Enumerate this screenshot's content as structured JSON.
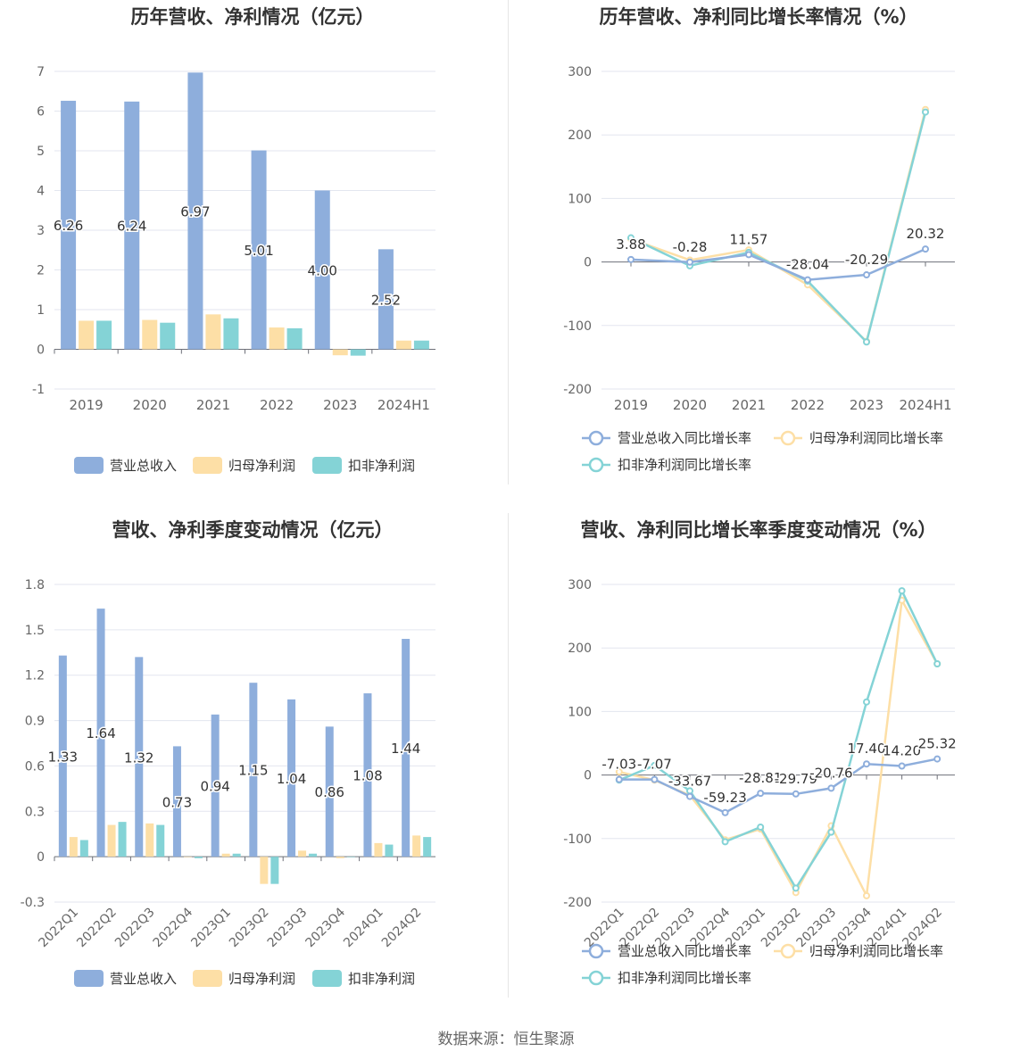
{
  "source": "数据来源：恒生聚源",
  "colors": {
    "revenue": "#8eaedc",
    "net_profit": "#fddfa6",
    "deducted_profit": "#84d3d6",
    "grid": "#e3e6ef",
    "axis": "#666666",
    "label": "#333333"
  },
  "chart_data": [
    {
      "type": "bar",
      "title": "历年营收、净利情况（亿元）",
      "categories": [
        "2019",
        "2020",
        "2021",
        "2022",
        "2023",
        "2024H1"
      ],
      "ylim": [
        -1,
        7
      ],
      "yticks": [
        -1,
        0,
        1,
        2,
        3,
        4,
        5,
        6,
        7
      ],
      "ytick_labels": [
        "-1",
        "0",
        "1",
        "2",
        "3",
        "4",
        "5",
        "6",
        "7"
      ],
      "series": [
        {
          "name": "营业总收入",
          "values": [
            6.26,
            6.24,
            6.97,
            5.01,
            4.0,
            2.52
          ],
          "labels": [
            "6.26",
            "6.24",
            "6.97",
            "5.01",
            "4.00",
            "2.52"
          ]
        },
        {
          "name": "归母净利润",
          "values": [
            0.72,
            0.74,
            0.88,
            0.55,
            -0.15,
            0.22
          ]
        },
        {
          "name": "扣非净利润",
          "values": [
            0.72,
            0.67,
            0.78,
            0.53,
            -0.16,
            0.22
          ]
        }
      ],
      "legend": "bottom",
      "grid": true
    },
    {
      "type": "line",
      "title": "历年营收、净利同比增长率情况（%）",
      "categories": [
        "2019",
        "2020",
        "2021",
        "2022",
        "2023",
        "2024H1"
      ],
      "ylim": [
        -200,
        300
      ],
      "yticks": [
        -200,
        -100,
        0,
        100,
        200,
        300
      ],
      "ytick_labels": [
        "-200",
        "-100",
        "0",
        "100",
        "200",
        "300"
      ],
      "series": [
        {
          "name": "营业总收入同比增长率",
          "values": [
            3.88,
            -0.28,
            11.57,
            -28.04,
            -20.29,
            20.32
          ],
          "labels": [
            "3.88",
            "-0.28",
            "11.57",
            "-28.04",
            "-20.29",
            "20.32"
          ]
        },
        {
          "name": "归母净利润同比增长率",
          "values": [
            36,
            3,
            19,
            -36,
            -125,
            240
          ]
        },
        {
          "name": "扣非净利润同比增长率",
          "values": [
            38,
            -6,
            15,
            -30,
            -126,
            236
          ]
        }
      ],
      "legend": "bottom",
      "grid": true
    },
    {
      "type": "bar",
      "title": "营收、净利季度变动情况（亿元）",
      "categories": [
        "2022Q1",
        "2022Q2",
        "2022Q3",
        "2022Q4",
        "2023Q1",
        "2023Q2",
        "2023Q3",
        "2023Q4",
        "2024Q1",
        "2024Q2"
      ],
      "ylim": [
        -0.3,
        1.8
      ],
      "yticks": [
        -0.3,
        0,
        0.3,
        0.6,
        0.9,
        1.2,
        1.5,
        1.8
      ],
      "ytick_labels": [
        "-0.3",
        "0",
        "0.3",
        "0.6",
        "0.9",
        "1.2",
        "1.5",
        "1.8"
      ],
      "series": [
        {
          "name": "营业总收入",
          "values": [
            1.33,
            1.64,
            1.32,
            0.73,
            0.94,
            1.15,
            1.04,
            0.86,
            1.08,
            1.44
          ],
          "labels": [
            "1.33",
            "1.64",
            "1.32",
            "0.73",
            "0.94",
            "1.15",
            "1.04",
            "0.86",
            "1.08",
            "1.44"
          ]
        },
        {
          "name": "归母净利润",
          "values": [
            0.13,
            0.21,
            0.22,
            0.0,
            0.02,
            -0.18,
            0.04,
            -0.01,
            0.09,
            0.14
          ]
        },
        {
          "name": "扣非净利润",
          "values": [
            0.11,
            0.23,
            0.21,
            -0.01,
            0.02,
            -0.18,
            0.02,
            0.0,
            0.08,
            0.13
          ]
        }
      ],
      "legend": "bottom",
      "grid": true
    },
    {
      "type": "line",
      "title": "营收、净利同比增长率季度变动情况（%）",
      "categories": [
        "2022Q1",
        "2022Q2",
        "2022Q3",
        "2022Q4",
        "2023Q1",
        "2023Q2",
        "2023Q3",
        "2023Q4",
        "2024Q1",
        "2024Q2"
      ],
      "ylim": [
        -200,
        300
      ],
      "yticks": [
        -200,
        -100,
        0,
        100,
        200,
        300
      ],
      "ytick_labels": [
        "-200",
        "-100",
        "0",
        "100",
        "200",
        "300"
      ],
      "series": [
        {
          "name": "营业总收入同比增长率",
          "values": [
            -7.03,
            -7.07,
            -33.67,
            -59.23,
            -28.81,
            -29.79,
            -20.76,
            17.4,
            14.2,
            25.32
          ],
          "labels": [
            "-7.03",
            "-7.07",
            "-33.67",
            "-59.23",
            "-28.81",
            "-29.79",
            "-20.76",
            "17.40",
            "14.20",
            "25.32"
          ]
        },
        {
          "name": "归母净利润同比增长率",
          "values": [
            5,
            -8,
            -32,
            -102,
            -85,
            -185,
            -80,
            -190,
            275,
            175
          ]
        },
        {
          "name": "扣非净利润同比增长率",
          "values": [
            -8,
            15,
            -25,
            -105,
            -82,
            -178,
            -90,
            115,
            290,
            175
          ]
        }
      ],
      "legend": "bottom",
      "grid": true
    }
  ]
}
